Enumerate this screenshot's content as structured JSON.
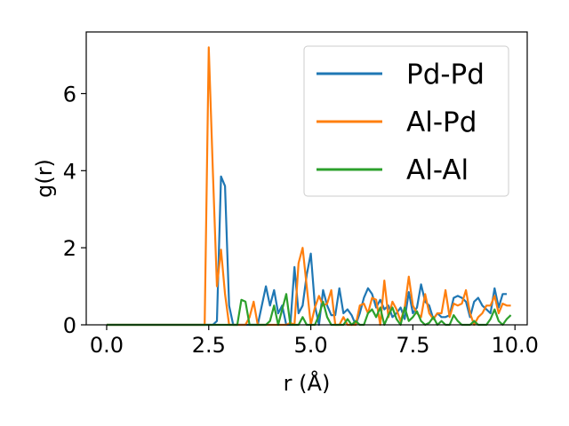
{
  "chart_data": {
    "type": "line",
    "xlabel": "r (Å)",
    "ylabel": "g(r)",
    "xlim": [
      -0.5,
      10.3
    ],
    "ylim": [
      0,
      7.6
    ],
    "xticks": [
      {
        "value": 0.0,
        "label": "0.0"
      },
      {
        "value": 2.5,
        "label": "2.5"
      },
      {
        "value": 5.0,
        "label": "5.0"
      },
      {
        "value": 7.5,
        "label": "7.5"
      },
      {
        "value": 10.0,
        "label": "10.0"
      }
    ],
    "yticks": [
      {
        "value": 0,
        "label": "0"
      },
      {
        "value": 2,
        "label": "2"
      },
      {
        "value": 4,
        "label": "4"
      },
      {
        "value": 6,
        "label": "6"
      }
    ],
    "grid": false,
    "legend_position": "top-right",
    "series": [
      {
        "name": "Pd-Pd",
        "color": "#1f77b4",
        "points": [
          [
            0.0,
            0.0
          ],
          [
            0.5,
            0.0
          ],
          [
            1.0,
            0.0
          ],
          [
            1.5,
            0.0
          ],
          [
            2.0,
            0.0
          ],
          [
            2.5,
            0.0
          ],
          [
            2.6,
            0.0
          ],
          [
            2.7,
            0.1
          ],
          [
            2.8,
            3.85
          ],
          [
            2.9,
            3.6
          ],
          [
            3.0,
            0.5
          ],
          [
            3.1,
            0.0
          ],
          [
            3.3,
            0.0
          ],
          [
            3.5,
            0.0
          ],
          [
            3.7,
            0.0
          ],
          [
            3.9,
            1.0
          ],
          [
            4.0,
            0.5
          ],
          [
            4.1,
            0.9
          ],
          [
            4.2,
            0.3
          ],
          [
            4.3,
            0.5
          ],
          [
            4.4,
            0.0
          ],
          [
            4.5,
            0.0
          ],
          [
            4.6,
            1.5
          ],
          [
            4.7,
            0.3
          ],
          [
            4.8,
            0.5
          ],
          [
            4.9,
            1.3
          ],
          [
            5.0,
            1.85
          ],
          [
            5.1,
            0.5
          ],
          [
            5.2,
            0.0
          ],
          [
            5.3,
            0.9
          ],
          [
            5.4,
            0.5
          ],
          [
            5.5,
            0.25
          ],
          [
            5.6,
            0.25
          ],
          [
            5.7,
            0.95
          ],
          [
            5.8,
            0.3
          ],
          [
            5.9,
            0.4
          ],
          [
            6.0,
            0.25
          ],
          [
            6.1,
            0.0
          ],
          [
            6.2,
            0.3
          ],
          [
            6.3,
            0.7
          ],
          [
            6.4,
            0.95
          ],
          [
            6.5,
            0.8
          ],
          [
            6.6,
            0.45
          ],
          [
            6.7,
            0.65
          ],
          [
            6.8,
            0.4
          ],
          [
            6.9,
            0.5
          ],
          [
            7.0,
            0.2
          ],
          [
            7.1,
            0.3
          ],
          [
            7.2,
            0.45
          ],
          [
            7.3,
            0.15
          ],
          [
            7.4,
            0.85
          ],
          [
            7.5,
            0.3
          ],
          [
            7.6,
            0.45
          ],
          [
            7.7,
            1.05
          ],
          [
            7.8,
            0.6
          ],
          [
            7.9,
            0.5
          ],
          [
            8.0,
            0.15
          ],
          [
            8.1,
            0.3
          ],
          [
            8.2,
            0.2
          ],
          [
            8.3,
            0.2
          ],
          [
            8.4,
            0.25
          ],
          [
            8.5,
            0.7
          ],
          [
            8.6,
            0.75
          ],
          [
            8.7,
            0.7
          ],
          [
            8.8,
            0.6
          ],
          [
            8.9,
            0.2
          ],
          [
            9.0,
            0.6
          ],
          [
            9.1,
            0.7
          ],
          [
            9.2,
            0.5
          ],
          [
            9.3,
            0.4
          ],
          [
            9.4,
            0.3
          ],
          [
            9.5,
            0.95
          ],
          [
            9.6,
            0.45
          ],
          [
            9.7,
            0.8
          ],
          [
            9.8,
            0.8
          ]
        ]
      },
      {
        "name": "Al-Pd",
        "color": "#ff7f0e",
        "points": [
          [
            0.0,
            0.0
          ],
          [
            0.5,
            0.0
          ],
          [
            1.0,
            0.0
          ],
          [
            1.5,
            0.0
          ],
          [
            2.0,
            0.0
          ],
          [
            2.4,
            0.0
          ],
          [
            2.5,
            7.2
          ],
          [
            2.6,
            4.0
          ],
          [
            2.7,
            1.0
          ],
          [
            2.8,
            1.95
          ],
          [
            2.9,
            0.8
          ],
          [
            3.0,
            0.0
          ],
          [
            3.2,
            0.0
          ],
          [
            3.4,
            0.0
          ],
          [
            3.5,
            0.2
          ],
          [
            3.6,
            0.6
          ],
          [
            3.7,
            0.0
          ],
          [
            3.8,
            0.0
          ],
          [
            3.9,
            0.0
          ],
          [
            4.0,
            0.0
          ],
          [
            4.1,
            0.0
          ],
          [
            4.2,
            0.0
          ],
          [
            4.3,
            0.0
          ],
          [
            4.4,
            0.0
          ],
          [
            4.5,
            0.05
          ],
          [
            4.6,
            0.0
          ],
          [
            4.7,
            1.6
          ],
          [
            4.8,
            2.0
          ],
          [
            4.9,
            1.0
          ],
          [
            5.0,
            0.0
          ],
          [
            5.1,
            0.45
          ],
          [
            5.2,
            0.75
          ],
          [
            5.3,
            0.5
          ],
          [
            5.4,
            0.55
          ],
          [
            5.5,
            0.9
          ],
          [
            5.6,
            0.0
          ],
          [
            5.7,
            0.0
          ],
          [
            5.8,
            0.2
          ],
          [
            5.9,
            0.0
          ],
          [
            6.0,
            0.0
          ],
          [
            6.1,
            0.0
          ],
          [
            6.2,
            0.5
          ],
          [
            6.3,
            0.55
          ],
          [
            6.4,
            0.3
          ],
          [
            6.5,
            0.7
          ],
          [
            6.6,
            0.65
          ],
          [
            6.7,
            0.0
          ],
          [
            6.8,
            1.15
          ],
          [
            6.9,
            0.2
          ],
          [
            7.0,
            0.6
          ],
          [
            7.1,
            0.4
          ],
          [
            7.2,
            0.1
          ],
          [
            7.3,
            0.45
          ],
          [
            7.4,
            1.25
          ],
          [
            7.5,
            0.5
          ],
          [
            7.6,
            0.3
          ],
          [
            7.7,
            0.2
          ],
          [
            7.8,
            0.8
          ],
          [
            7.9,
            0.3
          ],
          [
            8.0,
            0.15
          ],
          [
            8.1,
            0.3
          ],
          [
            8.2,
            0.3
          ],
          [
            8.3,
            0.9
          ],
          [
            8.4,
            0.2
          ],
          [
            8.5,
            0.55
          ],
          [
            8.6,
            0.5
          ],
          [
            8.7,
            0.55
          ],
          [
            8.8,
            0.9
          ],
          [
            8.9,
            0.3
          ],
          [
            9.0,
            0.0
          ],
          [
            9.1,
            0.2
          ],
          [
            9.2,
            0.3
          ],
          [
            9.3,
            0.5
          ],
          [
            9.4,
            0.5
          ],
          [
            9.5,
            0.75
          ],
          [
            9.6,
            0.3
          ],
          [
            9.7,
            0.55
          ],
          [
            9.8,
            0.5
          ],
          [
            9.9,
            0.5
          ]
        ]
      },
      {
        "name": "Al-Al",
        "color": "#2ca02c",
        "points": [
          [
            0.0,
            0.0
          ],
          [
            0.5,
            0.0
          ],
          [
            1.0,
            0.0
          ],
          [
            1.5,
            0.0
          ],
          [
            2.0,
            0.0
          ],
          [
            2.5,
            0.0
          ],
          [
            3.0,
            0.0
          ],
          [
            3.2,
            0.0
          ],
          [
            3.3,
            0.65
          ],
          [
            3.4,
            0.6
          ],
          [
            3.5,
            0.0
          ],
          [
            3.6,
            0.0
          ],
          [
            3.7,
            0.0
          ],
          [
            3.8,
            0.0
          ],
          [
            3.9,
            0.0
          ],
          [
            4.0,
            0.1
          ],
          [
            4.1,
            0.5
          ],
          [
            4.2,
            0.0
          ],
          [
            4.3,
            0.4
          ],
          [
            4.4,
            0.8
          ],
          [
            4.5,
            0.0
          ],
          [
            4.6,
            0.0
          ],
          [
            4.7,
            0.0
          ],
          [
            4.8,
            0.2
          ],
          [
            4.9,
            0.0
          ],
          [
            5.0,
            0.0
          ],
          [
            5.1,
            0.0
          ],
          [
            5.2,
            0.25
          ],
          [
            5.3,
            0.6
          ],
          [
            5.4,
            0.2
          ],
          [
            5.5,
            0.0
          ],
          [
            5.6,
            0.0
          ],
          [
            5.7,
            0.0
          ],
          [
            5.8,
            0.0
          ],
          [
            5.9,
            0.15
          ],
          [
            6.0,
            0.0
          ],
          [
            6.1,
            0.1
          ],
          [
            6.2,
            0.0
          ],
          [
            6.3,
            0.0
          ],
          [
            6.4,
            0.3
          ],
          [
            6.5,
            0.4
          ],
          [
            6.6,
            0.2
          ],
          [
            6.7,
            0.45
          ],
          [
            6.8,
            0.0
          ],
          [
            6.9,
            0.25
          ],
          [
            7.0,
            0.45
          ],
          [
            7.1,
            0.15
          ],
          [
            7.2,
            0.0
          ],
          [
            7.3,
            0.45
          ],
          [
            7.4,
            0.1
          ],
          [
            7.5,
            0.2
          ],
          [
            7.6,
            0.35
          ],
          [
            7.7,
            0.1
          ],
          [
            7.8,
            0.0
          ],
          [
            7.9,
            0.05
          ],
          [
            8.0,
            0.2
          ],
          [
            8.1,
            0.0
          ],
          [
            8.2,
            0.1
          ],
          [
            8.3,
            0.0
          ],
          [
            8.4,
            0.0
          ],
          [
            8.5,
            0.25
          ],
          [
            8.6,
            0.1
          ],
          [
            8.7,
            0.0
          ],
          [
            8.8,
            0.0
          ],
          [
            8.9,
            0.0
          ],
          [
            9.0,
            0.1
          ],
          [
            9.1,
            0.0
          ],
          [
            9.2,
            0.0
          ],
          [
            9.3,
            0.0
          ],
          [
            9.4,
            0.15
          ],
          [
            9.5,
            0.4
          ],
          [
            9.6,
            0.1
          ],
          [
            9.7,
            0.0
          ],
          [
            9.8,
            0.15
          ],
          [
            9.9,
            0.25
          ]
        ]
      }
    ]
  }
}
